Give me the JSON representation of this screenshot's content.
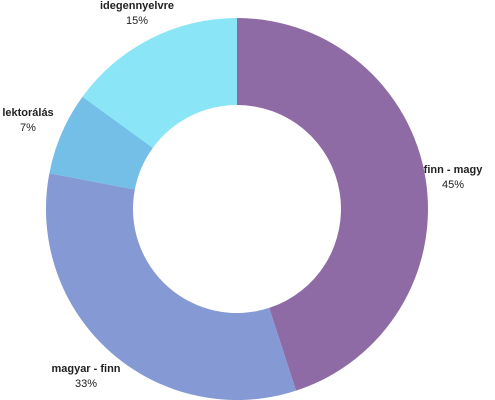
{
  "chart_data": {
    "type": "donut",
    "categories": [
      "finn - magy",
      "magyar - finn",
      "lektorálás",
      "idegennyelvre"
    ],
    "values": [
      45,
      33,
      7,
      15
    ],
    "value_labels": [
      "45%",
      "33%",
      "7%",
      "15%"
    ],
    "colors": [
      "#8f6ba5",
      "#8599d4",
      "#74bfe8",
      "#8ae5f7"
    ]
  }
}
